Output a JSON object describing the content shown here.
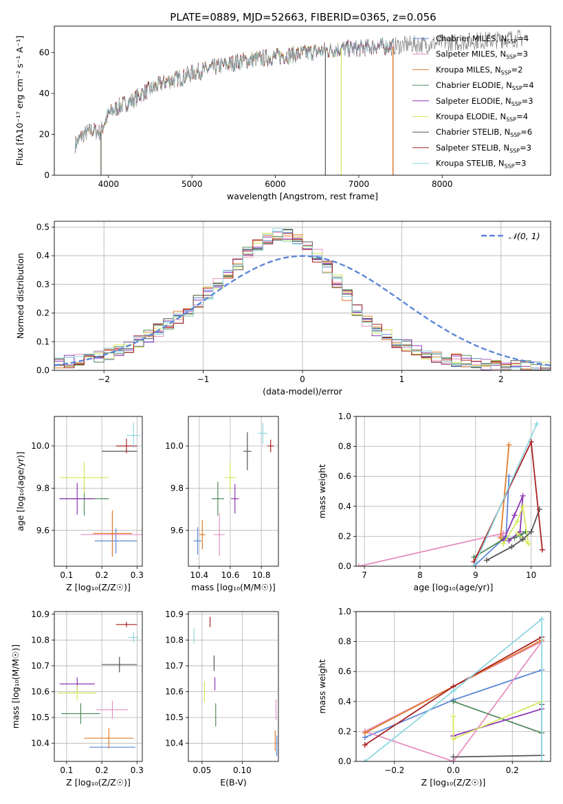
{
  "title": "PLATE=0889, MJD=52663, FIBERID=0365, z=0.056",
  "series": [
    {
      "name": "Chabrier MILES",
      "nssp": "4",
      "color": "#5b86d6"
    },
    {
      "name": "Salpeter MILES",
      "nssp": "3",
      "color": "#e68ec0"
    },
    {
      "name": "Kroupa MILES",
      "nssp": "2",
      "color": "#e07b29"
    },
    {
      "name": "Chabrier ELODIE",
      "nssp": "4",
      "color": "#4f8a5a"
    },
    {
      "name": "Salpeter ELODIE",
      "nssp": "3",
      "color": "#8b35b5"
    },
    {
      "name": "Kroupa ELODIE",
      "nssp": "4",
      "color": "#d6e65a"
    },
    {
      "name": "Chabrier STELIB",
      "nssp": "6",
      "color": "#555555"
    },
    {
      "name": "Salpeter STELIB",
      "nssp": "3",
      "color": "#a81f1f"
    },
    {
      "name": "Kroupa STELIB",
      "nssp": "3",
      "color": "#8ed7e0"
    }
  ],
  "chart_data": [
    {
      "id": "spectrum",
      "type": "line",
      "xlabel": "wavelength [Angstrom, rest frame]",
      "ylabel": "Flux [fλ10⁻¹⁷ erg cm⁻² s⁻¹ A⁻¹]",
      "xlim": [
        3350,
        9300
      ],
      "ylim": [
        0,
        73
      ],
      "xticks": [
        4000,
        5000,
        6000,
        7000,
        8000
      ],
      "yticks": [
        0,
        20,
        40,
        60
      ],
      "legend": "upper-right",
      "continuum": {
        "x": [
          3600,
          3700,
          3800,
          3900,
          4000,
          4100,
          4200,
          4300,
          4400,
          4500,
          4600,
          4700,
          4800,
          4900,
          5000,
          5200,
          5400,
          5600,
          5800,
          6000,
          6200,
          6400,
          6600,
          6800,
          7000,
          7200,
          7400,
          7600,
          7800,
          8000,
          8200,
          8400,
          8600,
          8800,
          9000,
          9200
        ],
        "y": [
          15,
          20,
          22,
          21,
          30,
          33,
          35,
          37,
          40,
          42,
          44,
          46,
          47,
          48,
          50,
          52,
          54,
          56,
          57,
          58,
          59,
          60,
          61,
          62,
          62,
          63,
          63,
          64,
          64,
          65,
          65,
          66,
          66,
          67,
          67,
          67
        ]
      },
      "model_end_wavelength": [
        7410,
        7410,
        7400,
        7400,
        7410,
        6790,
        7410,
        7410,
        7420
      ],
      "drop_lines": [
        {
          "x": 3910,
          "series": [
            5,
            6
          ]
        },
        {
          "x": 6790,
          "series": [
            5
          ]
        },
        {
          "x": 7410,
          "series": [
            7,
            2
          ]
        },
        {
          "x": 6600,
          "series": [
            6
          ]
        }
      ]
    },
    {
      "id": "residual-histogram",
      "type": "bar",
      "xlabel": "(data-model)/error",
      "ylabel": "Normed distribution",
      "xlim": [
        -2.5,
        2.5
      ],
      "ylim": [
        0,
        0.52
      ],
      "xticks": [
        -2,
        -1,
        0,
        1,
        2
      ],
      "yticks": [
        0.0,
        0.1,
        0.2,
        0.3,
        0.4,
        0.5
      ],
      "legend": "upper-right",
      "reference_label": "𝒩(0, 1)",
      "reference_color": "#5b86d6",
      "bin_width": 0.1,
      "bin_start": -2.5,
      "base_values": [
        0.025,
        0.03,
        0.035,
        0.04,
        0.05,
        0.06,
        0.07,
        0.085,
        0.1,
        0.12,
        0.14,
        0.16,
        0.185,
        0.21,
        0.24,
        0.27,
        0.3,
        0.33,
        0.37,
        0.41,
        0.44,
        0.46,
        0.475,
        0.47,
        0.455,
        0.43,
        0.4,
        0.36,
        0.31,
        0.26,
        0.21,
        0.17,
        0.14,
        0.12,
        0.1,
        0.085,
        0.07,
        0.06,
        0.05,
        0.04,
        0.035,
        0.03,
        0.025,
        0.02,
        0.018,
        0.015,
        0.013,
        0.012,
        0.011,
        0.01
      ]
    },
    {
      "id": "age-vs-Z",
      "type": "scatter",
      "xlabel": "Z [log₁₀(Z/Z☉)]",
      "ylabel": "age  [log₁₀(age/yr)]",
      "xlim": [
        0.065,
        0.315
      ],
      "ylim": [
        9.43,
        10.14
      ],
      "xticks": [
        0.1,
        0.2,
        0.3
      ],
      "yticks": [
        9.6,
        9.8,
        10.0
      ],
      "points": [
        {
          "x": 0.24,
          "y": 9.55,
          "ex": 0.06,
          "ey": 0.06,
          "s": 0
        },
        {
          "x": 0.23,
          "y": 9.58,
          "ex": 0.09,
          "ey": 0.1,
          "s": 1
        },
        {
          "x": 0.23,
          "y": 9.585,
          "ex": 0.055,
          "ey": 0.11,
          "s": 2
        },
        {
          "x": 0.15,
          "y": 9.75,
          "ex": 0.07,
          "ey": 0.08,
          "s": 3
        },
        {
          "x": 0.13,
          "y": 9.75,
          "ex": 0.05,
          "ey": 0.075,
          "s": 4
        },
        {
          "x": 0.15,
          "y": 9.85,
          "ex": 0.07,
          "ey": 0.075,
          "s": 5
        },
        {
          "x": 0.25,
          "y": 9.975,
          "ex": 0.05,
          "ey": 0.0,
          "s": 6
        },
        {
          "x": 0.27,
          "y": 10.0,
          "ex": 0.03,
          "ey": 0.035,
          "s": 7
        },
        {
          "x": 0.29,
          "y": 10.05,
          "ex": 0.02,
          "ey": 0.06,
          "s": 8
        }
      ]
    },
    {
      "id": "age-vs-mass",
      "type": "scatter",
      "xlabel": "mass [log₁₀(M/M☉)]",
      "ylabel": "",
      "xlim": [
        10.33,
        10.91
      ],
      "ylim": [
        9.43,
        10.14
      ],
      "xticks": [
        10.4,
        10.6,
        10.8
      ],
      "yticks": [
        9.6,
        9.8,
        10.0
      ],
      "points": [
        {
          "x": 10.39,
          "y": 9.55,
          "ex": 0.025,
          "ey": 0.065,
          "s": 0
        },
        {
          "x": 10.53,
          "y": 9.58,
          "ex": 0.035,
          "ey": 0.1,
          "s": 1
        },
        {
          "x": 10.42,
          "y": 9.58,
          "ex": 0.02,
          "ey": 0.07,
          "s": 2
        },
        {
          "x": 10.52,
          "y": 9.75,
          "ex": 0.04,
          "ey": 0.08,
          "s": 3
        },
        {
          "x": 10.63,
          "y": 9.75,
          "ex": 0.025,
          "ey": 0.07,
          "s": 4
        },
        {
          "x": 10.6,
          "y": 9.85,
          "ex": 0.035,
          "ey": 0.07,
          "s": 5
        },
        {
          "x": 10.71,
          "y": 9.975,
          "ex": 0.025,
          "ey": 0.09,
          "s": 6
        },
        {
          "x": 10.86,
          "y": 10.0,
          "ex": 0.02,
          "ey": 0.03,
          "s": 7
        },
        {
          "x": 10.81,
          "y": 10.06,
          "ex": 0.03,
          "ey": 0.05,
          "s": 8
        }
      ]
    },
    {
      "id": "mass-weight-vs-age",
      "type": "line",
      "xlabel": "age  [log₁₀(age/yr)]",
      "ylabel": "mass weight",
      "xlim": [
        6.85,
        10.35
      ],
      "ylim": [
        0,
        1
      ],
      "xticks": [
        7,
        8,
        9,
        10
      ],
      "yticks": [
        0.0,
        0.2,
        0.4,
        0.6,
        0.8,
        1.0
      ],
      "lines": [
        {
          "s": 0,
          "x": [
            8.97,
            9.55,
            9.6,
            9.55
          ],
          "y": [
            0.0,
            0.2,
            0.6,
            0.2
          ]
        },
        {
          "s": 1,
          "x": [
            6.9,
            9.5,
            9.45,
            9.5
          ],
          "y": [
            0.0,
            0.22,
            0.2,
            0.22
          ]
        },
        {
          "s": 2,
          "x": [
            9.45,
            9.6,
            9.45
          ],
          "y": [
            0.19,
            0.81,
            0.19
          ]
        },
        {
          "s": 3,
          "x": [
            8.97,
            9.5,
            9.7,
            9.9,
            9.8
          ],
          "y": [
            0.06,
            0.18,
            0.19,
            0.23,
            0.2
          ]
        },
        {
          "s": 4,
          "x": [
            9.5,
            9.7,
            9.85,
            9.8,
            9.6
          ],
          "y": [
            0.17,
            0.34,
            0.47,
            0.23,
            0.17
          ]
        },
        {
          "s": 5,
          "x": [
            9.5,
            9.75,
            9.85,
            9.95,
            9.75
          ],
          "y": [
            0.15,
            0.3,
            0.4,
            0.15,
            0.22
          ]
        },
        {
          "s": 6,
          "x": [
            9.2,
            9.65,
            9.85,
            10.0,
            10.15
          ],
          "y": [
            0.04,
            0.13,
            0.18,
            0.23,
            0.38
          ]
        },
        {
          "s": 7,
          "x": [
            8.97,
            10.0,
            10.2
          ],
          "y": [
            0.03,
            0.83,
            0.11
          ]
        },
        {
          "s": 8,
          "x": [
            8.97,
            10.1
          ],
          "y": [
            0.0,
            0.95
          ]
        }
      ]
    },
    {
      "id": "mass-vs-Z",
      "type": "scatter",
      "xlabel": "Z [log₁₀(Z/Z☉)]",
      "ylabel": "mass [log₁₀(M/M☉)]",
      "xlim": [
        0.065,
        0.315
      ],
      "ylim": [
        10.33,
        10.91
      ],
      "xticks": [
        0.1,
        0.2,
        0.3
      ],
      "yticks": [
        10.4,
        10.5,
        10.6,
        10.7,
        10.8,
        10.9
      ],
      "points": [
        {
          "x": 0.23,
          "y": 10.385,
          "ex": 0.065,
          "ey": 0.0,
          "s": 0
        },
        {
          "x": 0.23,
          "y": 10.53,
          "ex": 0.045,
          "ey": 0.035,
          "s": 1
        },
        {
          "x": 0.22,
          "y": 10.42,
          "ex": 0.07,
          "ey": 0.04,
          "s": 2
        },
        {
          "x": 0.14,
          "y": 10.515,
          "ex": 0.055,
          "ey": 0.04,
          "s": 3
        },
        {
          "x": 0.13,
          "y": 10.63,
          "ex": 0.05,
          "ey": 0.025,
          "s": 4
        },
        {
          "x": 0.13,
          "y": 10.595,
          "ex": 0.055,
          "ey": 0.03,
          "s": 5
        },
        {
          "x": 0.25,
          "y": 10.705,
          "ex": 0.05,
          "ey": 0.03,
          "s": 6
        },
        {
          "x": 0.27,
          "y": 10.86,
          "ex": 0.03,
          "ey": 0.01,
          "s": 7
        },
        {
          "x": 0.29,
          "y": 10.81,
          "ex": 0.015,
          "ey": 0.02,
          "s": 8
        }
      ]
    },
    {
      "id": "mass-vs-ebv",
      "type": "scatter",
      "xlabel": "E(B-V)",
      "ylabel": "",
      "xlim": [
        0.033,
        0.145
      ],
      "ylim": [
        10.33,
        10.91
      ],
      "xticks": [
        0.05,
        0.1
      ],
      "yticks": [
        10.4,
        10.5,
        10.6,
        10.7,
        10.8,
        10.9
      ],
      "tick_labels": [
        "0.05",
        "0.10"
      ],
      "points": [
        {
          "x": 0.143,
          "y": 10.39,
          "ex": 0,
          "ey": 0.04,
          "s": 0
        },
        {
          "x": 0.142,
          "y": 10.53,
          "ex": 0,
          "ey": 0.04,
          "s": 1
        },
        {
          "x": 0.141,
          "y": 10.41,
          "ex": 0,
          "ey": 0.04,
          "s": 2
        },
        {
          "x": 0.067,
          "y": 10.51,
          "ex": 0,
          "ey": 0.045,
          "s": 3
        },
        {
          "x": 0.066,
          "y": 10.63,
          "ex": 0,
          "ey": 0.025,
          "s": 4
        },
        {
          "x": 0.053,
          "y": 10.6,
          "ex": 0,
          "ey": 0.04,
          "s": 5
        },
        {
          "x": 0.065,
          "y": 10.71,
          "ex": 0,
          "ey": 0.03,
          "s": 6
        },
        {
          "x": 0.06,
          "y": 10.87,
          "ex": 0,
          "ey": 0.02,
          "s": 7
        },
        {
          "x": 0.04,
          "y": 10.815,
          "ex": 0,
          "ey": 0.03,
          "s": 8
        }
      ]
    },
    {
      "id": "mass-weight-vs-Z",
      "type": "line",
      "xlabel": "Z [log₁₀(Z/Z☉)]",
      "ylabel": "mass weight",
      "xlim": [
        -0.33,
        0.33
      ],
      "ylim": [
        0,
        1
      ],
      "xticks": [
        -0.2,
        0.0,
        0.2
      ],
      "yticks": [
        0.0,
        0.2,
        0.4,
        0.6,
        0.8,
        1.0
      ],
      "lines": [
        {
          "s": 0,
          "x": [
            -0.3,
            0.0,
            0.3
          ],
          "y": [
            0.16,
            0.41,
            0.61
          ]
        },
        {
          "s": 1,
          "x": [
            -0.3,
            0.0,
            0.3,
            -0.3
          ],
          "y": [
            0.2,
            0.0,
            0.8,
            0.2
          ]
        },
        {
          "s": 2,
          "x": [
            -0.3,
            0.3
          ],
          "y": [
            0.19,
            0.81
          ]
        },
        {
          "s": 3,
          "x": [
            0.0,
            0.3,
            0.0
          ],
          "y": [
            0.4,
            0.19,
            0.4
          ]
        },
        {
          "s": 4,
          "x": [
            0.0,
            0.3,
            0.0
          ],
          "y": [
            0.17,
            0.35,
            0.17
          ]
        },
        {
          "s": 5,
          "x": [
            0.0,
            0.0,
            0.3,
            0.0
          ],
          "y": [
            0.3,
            0.15,
            0.4,
            0.15
          ]
        },
        {
          "s": 6,
          "x": [
            0.0,
            0.3,
            0.3
          ],
          "y": [
            0.03,
            0.04,
            0.38
          ]
        },
        {
          "s": 7,
          "x": [
            -0.3,
            0.0,
            0.3
          ],
          "y": [
            0.11,
            0.5,
            0.83
          ]
        },
        {
          "s": 8,
          "x": [
            -0.3,
            0.0,
            0.3,
            0.3
          ],
          "y": [
            0.0,
            0.47,
            0.95,
            0.0
          ]
        }
      ]
    }
  ]
}
